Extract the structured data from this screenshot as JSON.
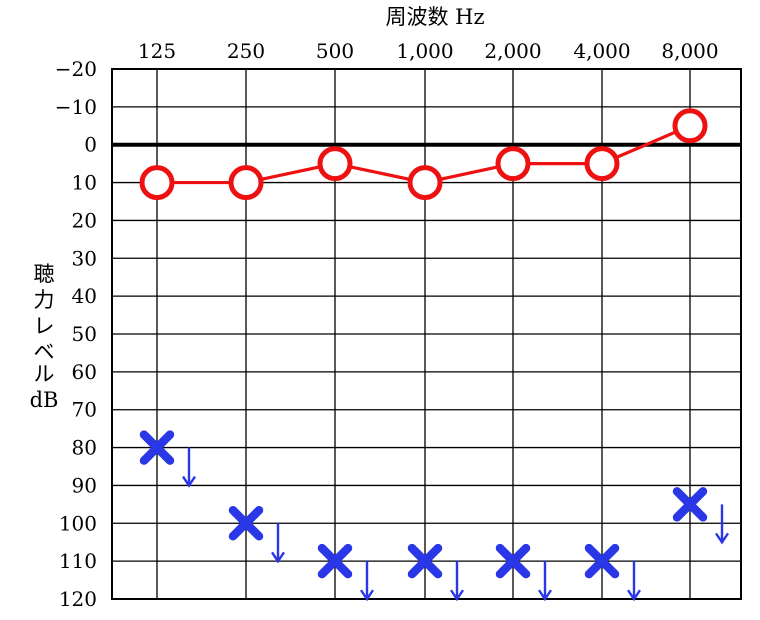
{
  "chart_data": {
    "type": "line",
    "title": "周波数 Hz",
    "ylabel": [
      "聴",
      "力",
      "レ",
      "ベ",
      "ル",
      "dB"
    ],
    "x_categories": [
      "125",
      "250",
      "500",
      "1,000",
      "2,000",
      "4,000",
      "8,000"
    ],
    "y_ticks": [
      "−20",
      "−10",
      "0",
      "10",
      "20",
      "30",
      "40",
      "50",
      "60",
      "70",
      "80",
      "90",
      "100",
      "110",
      "120"
    ],
    "ylim": [
      -20,
      120
    ],
    "y_inverted": true,
    "grid": true,
    "reference_line": 0,
    "series": [
      {
        "marker": "circle",
        "connected": true,
        "color": "#ee1111",
        "values": [
          10,
          10,
          5,
          10,
          5,
          5,
          -5
        ]
      },
      {
        "marker": "cross",
        "connected": false,
        "no_response_arrow": true,
        "color": "#2a37e6",
        "values": [
          80,
          100,
          110,
          110,
          110,
          110,
          95
        ]
      }
    ]
  }
}
